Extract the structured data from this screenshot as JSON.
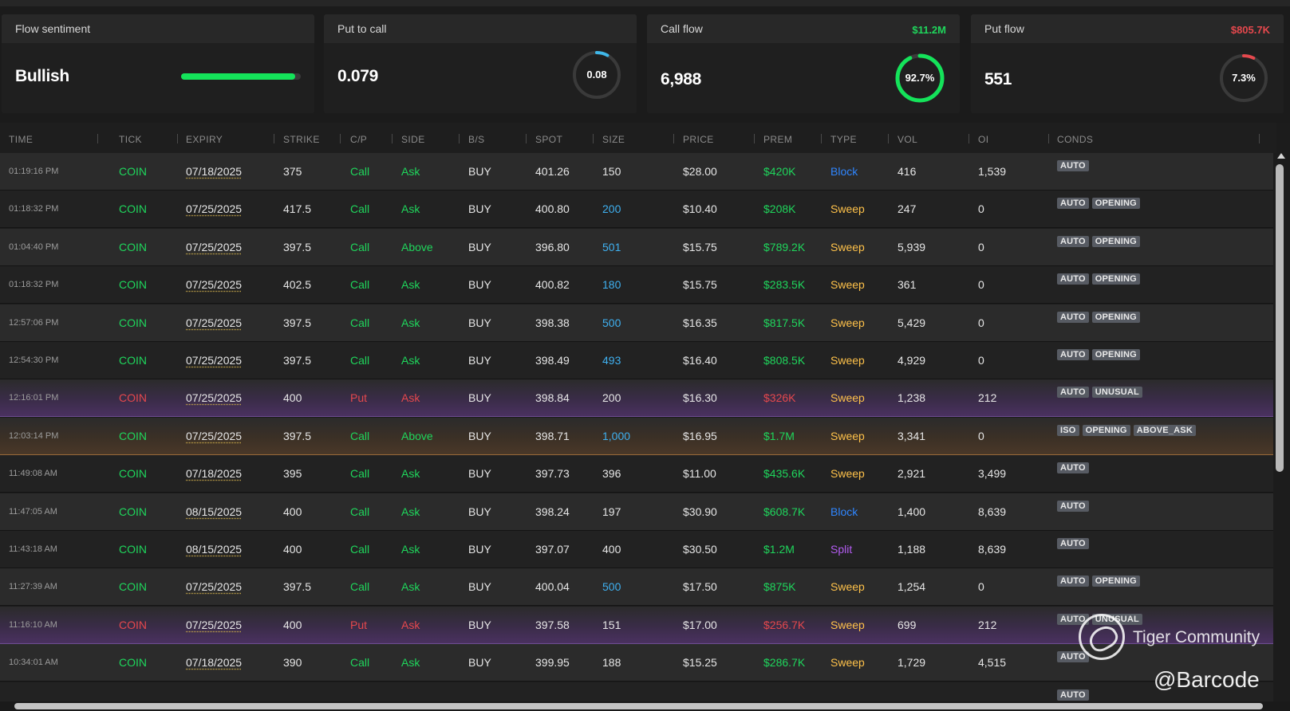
{
  "cards": {
    "sentiment": {
      "title": "Flow sentiment",
      "value": "Bullish",
      "level": 0.95,
      "color": "#14e35a"
    },
    "put_to_call": {
      "title": "Put to call",
      "value": "0.079",
      "ring_label": "0.08",
      "ring_fraction": 0.08,
      "ring_color": "#3fb7e8"
    },
    "call_flow": {
      "title": "Call flow",
      "premium": "$11.2M",
      "value": "6,988",
      "ring_label": "92.7%",
      "ring_fraction": 0.927,
      "ring_color": "#14e35a"
    },
    "put_flow": {
      "title": "Put flow",
      "premium": "$805.7K",
      "value": "551",
      "ring_label": "7.3%",
      "ring_fraction": 0.073,
      "ring_color": "#e5484d"
    }
  },
  "table": {
    "columns": [
      "TIME",
      "TICK",
      "EXPIRY",
      "STRIKE",
      "C/P",
      "SIDE",
      "B/S",
      "SPOT",
      "SIZE",
      "PRICE",
      "PREM",
      "TYPE",
      "VOL",
      "OI",
      "CONDS"
    ],
    "rows": [
      {
        "time": "01:19:16 PM",
        "tick": "COIN",
        "expiry": "07/18/2025",
        "strike": "375",
        "cp": "Call",
        "side": "Ask",
        "bs": "BUY",
        "spot": "401.26",
        "size": "150",
        "price": "$28.00",
        "prem": "$420K",
        "type": "Block",
        "vol": "416",
        "oi": "1,539",
        "conds": [
          "AUTO"
        ],
        "style": "even",
        "size_color": "white",
        "type_color": "blue"
      },
      {
        "time": "01:18:32 PM",
        "tick": "COIN",
        "expiry": "07/25/2025",
        "strike": "417.5",
        "cp": "Call",
        "side": "Ask",
        "bs": "BUY",
        "spot": "400.80",
        "size": "200",
        "price": "$10.40",
        "prem": "$208K",
        "type": "Sweep",
        "vol": "247",
        "oi": "0",
        "conds": [
          "AUTO",
          "OPENING"
        ],
        "style": "odd",
        "size_color": "lightblue",
        "type_color": "yellow"
      },
      {
        "time": "01:04:40 PM",
        "tick": "COIN",
        "expiry": "07/25/2025",
        "strike": "397.5",
        "cp": "Call",
        "side": "Above",
        "bs": "BUY",
        "spot": "396.80",
        "size": "501",
        "price": "$15.75",
        "prem": "$789.2K",
        "type": "Sweep",
        "vol": "5,939",
        "oi": "0",
        "conds": [
          "AUTO",
          "OPENING"
        ],
        "style": "even",
        "size_color": "lightblue",
        "type_color": "yellow"
      },
      {
        "time": "01:18:32 PM",
        "tick": "COIN",
        "expiry": "07/25/2025",
        "strike": "402.5",
        "cp": "Call",
        "side": "Ask",
        "bs": "BUY",
        "spot": "400.82",
        "size": "180",
        "price": "$15.75",
        "prem": "$283.5K",
        "type": "Sweep",
        "vol": "361",
        "oi": "0",
        "conds": [
          "AUTO",
          "OPENING"
        ],
        "style": "odd",
        "size_color": "lightblue",
        "type_color": "yellow"
      },
      {
        "time": "12:57:06 PM",
        "tick": "COIN",
        "expiry": "07/25/2025",
        "strike": "397.5",
        "cp": "Call",
        "side": "Ask",
        "bs": "BUY",
        "spot": "398.38",
        "size": "500",
        "price": "$16.35",
        "prem": "$817.5K",
        "type": "Sweep",
        "vol": "5,429",
        "oi": "0",
        "conds": [
          "AUTO",
          "OPENING"
        ],
        "style": "even",
        "size_color": "lightblue",
        "type_color": "yellow"
      },
      {
        "time": "12:54:30 PM",
        "tick": "COIN",
        "expiry": "07/25/2025",
        "strike": "397.5",
        "cp": "Call",
        "side": "Ask",
        "bs": "BUY",
        "spot": "398.49",
        "size": "493",
        "price": "$16.40",
        "prem": "$808.5K",
        "type": "Sweep",
        "vol": "4,929",
        "oi": "0",
        "conds": [
          "AUTO",
          "OPENING"
        ],
        "style": "odd",
        "size_color": "lightblue",
        "type_color": "yellow"
      },
      {
        "time": "12:16:01 PM",
        "tick": "COIN",
        "expiry": "07/25/2025",
        "strike": "400",
        "cp": "Put",
        "side": "Ask",
        "bs": "BUY",
        "spot": "398.84",
        "size": "200",
        "price": "$16.30",
        "prem": "$326K",
        "type": "Sweep",
        "vol": "1,238",
        "oi": "212",
        "conds": [
          "AUTO",
          "UNUSUAL"
        ],
        "style": "put",
        "size_color": "white",
        "type_color": "yellow"
      },
      {
        "time": "12:03:14 PM",
        "tick": "COIN",
        "expiry": "07/25/2025",
        "strike": "397.5",
        "cp": "Call",
        "side": "Above",
        "bs": "BUY",
        "spot": "398.71",
        "size": "1,000",
        "price": "$16.95",
        "prem": "$1.7M",
        "type": "Sweep",
        "vol": "3,341",
        "oi": "0",
        "conds": [
          "ISO",
          "OPENING",
          "ABOVE_ASK"
        ],
        "style": "big-call",
        "size_color": "lightblue",
        "type_color": "yellow"
      },
      {
        "time": "11:49:08 AM",
        "tick": "COIN",
        "expiry": "07/18/2025",
        "strike": "395",
        "cp": "Call",
        "side": "Ask",
        "bs": "BUY",
        "spot": "397.73",
        "size": "396",
        "price": "$11.00",
        "prem": "$435.6K",
        "type": "Sweep",
        "vol": "2,921",
        "oi": "3,499",
        "conds": [
          "AUTO"
        ],
        "style": "odd",
        "size_color": "white",
        "type_color": "yellow"
      },
      {
        "time": "11:47:05 AM",
        "tick": "COIN",
        "expiry": "08/15/2025",
        "strike": "400",
        "cp": "Call",
        "side": "Ask",
        "bs": "BUY",
        "spot": "398.24",
        "size": "197",
        "price": "$30.90",
        "prem": "$608.7K",
        "type": "Block",
        "vol": "1,400",
        "oi": "8,639",
        "conds": [
          "AUTO"
        ],
        "style": "even",
        "size_color": "white",
        "type_color": "blue"
      },
      {
        "time": "11:43:18 AM",
        "tick": "COIN",
        "expiry": "08/15/2025",
        "strike": "400",
        "cp": "Call",
        "side": "Ask",
        "bs": "BUY",
        "spot": "397.07",
        "size": "400",
        "price": "$30.50",
        "prem": "$1.2M",
        "type": "Split",
        "vol": "1,188",
        "oi": "8,639",
        "conds": [
          "AUTO"
        ],
        "style": "odd",
        "size_color": "white",
        "type_color": "purple"
      },
      {
        "time": "11:27:39 AM",
        "tick": "COIN",
        "expiry": "07/25/2025",
        "strike": "397.5",
        "cp": "Call",
        "side": "Ask",
        "bs": "BUY",
        "spot": "400.04",
        "size": "500",
        "price": "$17.50",
        "prem": "$875K",
        "type": "Sweep",
        "vol": "1,254",
        "oi": "0",
        "conds": [
          "AUTO",
          "OPENING"
        ],
        "style": "even",
        "size_color": "lightblue",
        "type_color": "yellow"
      },
      {
        "time": "11:16:10 AM",
        "tick": "COIN",
        "expiry": "07/25/2025",
        "strike": "400",
        "cp": "Put",
        "side": "Ask",
        "bs": "BUY",
        "spot": "397.58",
        "size": "151",
        "price": "$17.00",
        "prem": "$256.7K",
        "type": "Sweep",
        "vol": "699",
        "oi": "212",
        "conds": [
          "AUTO",
          "UNUSUAL"
        ],
        "style": "put",
        "size_color": "white",
        "type_color": "yellow"
      },
      {
        "time": "10:34:01 AM",
        "tick": "COIN",
        "expiry": "07/18/2025",
        "strike": "390",
        "cp": "Call",
        "side": "Ask",
        "bs": "BUY",
        "spot": "399.95",
        "size": "188",
        "price": "$15.25",
        "prem": "$286.7K",
        "type": "Sweep",
        "vol": "1,729",
        "oi": "4,515",
        "conds": [
          "AUTO"
        ],
        "style": "even",
        "size_color": "white",
        "type_color": "yellow"
      },
      {
        "time": "",
        "tick": "",
        "expiry": "",
        "strike": "",
        "cp": "",
        "side": "",
        "bs": "",
        "spot": "",
        "size": "",
        "price": "",
        "prem": "",
        "type": "",
        "vol": "",
        "oi": "",
        "conds": [
          "AUTO"
        ],
        "style": "odd",
        "size_color": "white",
        "type_color": "yellow"
      }
    ]
  },
  "watermark": {
    "community": "Tiger Community",
    "handle": "@Barcode"
  }
}
